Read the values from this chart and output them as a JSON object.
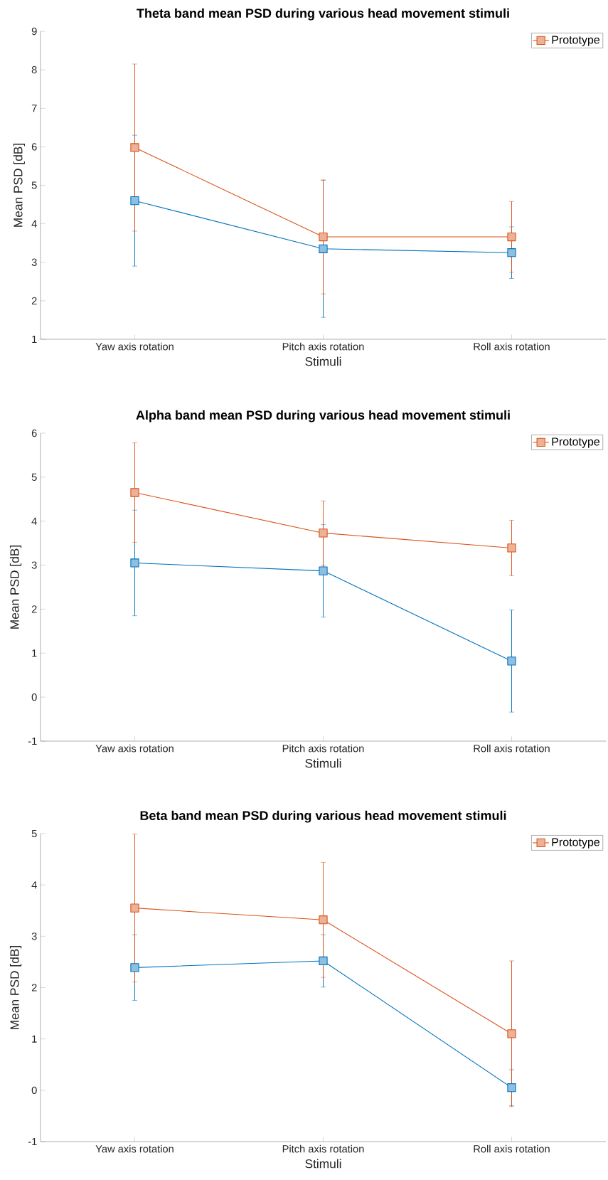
{
  "chart_data": [
    {
      "type": "line",
      "title": "Theta band mean PSD during various head movement stimuli",
      "xlabel": "Stimuli",
      "ylabel": "Mean PSD [dB]",
      "categories": [
        "Yaw axis rotation",
        "Pitch axis rotation",
        "Roll axis rotation"
      ],
      "ylim": [
        1,
        9
      ],
      "yticks": [
        1,
        2,
        3,
        4,
        5,
        6,
        7,
        8,
        9
      ],
      "legend": "top right",
      "marker": "square",
      "line_style": "solid",
      "series": [
        {
          "color": "#0072bd",
          "values": [
            4.6,
            3.35,
            3.25
          ],
          "errors": [
            1.7,
            1.78,
            0.67
          ]
        },
        {
          "name": "Prototype",
          "color": "#d95319",
          "values": [
            5.98,
            3.66,
            3.66
          ],
          "errors": [
            2.17,
            1.48,
            0.92
          ]
        }
      ]
    },
    {
      "type": "line",
      "title": "Alpha band mean PSD during various head movement stimuli",
      "xlabel": "Stimuli",
      "ylabel": "Mean PSD [dB]",
      "categories": [
        "Yaw axis rotation",
        "Pitch axis rotation",
        "Roll axis rotation"
      ],
      "ylim": [
        -1,
        6
      ],
      "yticks": [
        -1,
        0,
        1,
        2,
        3,
        4,
        5,
        6
      ],
      "legend": "top right",
      "marker": "square",
      "line_style": "solid",
      "series": [
        {
          "color": "#0072bd",
          "values": [
            3.05,
            2.87,
            0.82
          ],
          "errors": [
            1.2,
            1.05,
            1.16
          ]
        },
        {
          "name": "Prototype",
          "color": "#d95319",
          "values": [
            4.65,
            3.73,
            3.39
          ],
          "errors": [
            1.13,
            0.73,
            0.63
          ]
        }
      ]
    },
    {
      "type": "line",
      "title": "Beta band mean PSD during various head movement stimuli",
      "xlabel": "Stimuli",
      "ylabel": "Mean PSD [dB]",
      "categories": [
        "Yaw axis rotation",
        "Pitch axis rotation",
        "Roll axis rotation"
      ],
      "ylim": [
        -1,
        5
      ],
      "yticks": [
        -1,
        0,
        1,
        2,
        3,
        4,
        5
      ],
      "legend": "top right",
      "marker": "square",
      "line_style": "solid",
      "series": [
        {
          "color": "#0072bd",
          "values": [
            2.39,
            2.52,
            0.05
          ],
          "errors": [
            0.64,
            0.51,
            0.35
          ]
        },
        {
          "name": "Prototype",
          "color": "#d95319",
          "values": [
            3.55,
            3.32,
            1.1
          ],
          "errors": [
            1.44,
            1.12,
            1.42
          ]
        }
      ]
    }
  ]
}
